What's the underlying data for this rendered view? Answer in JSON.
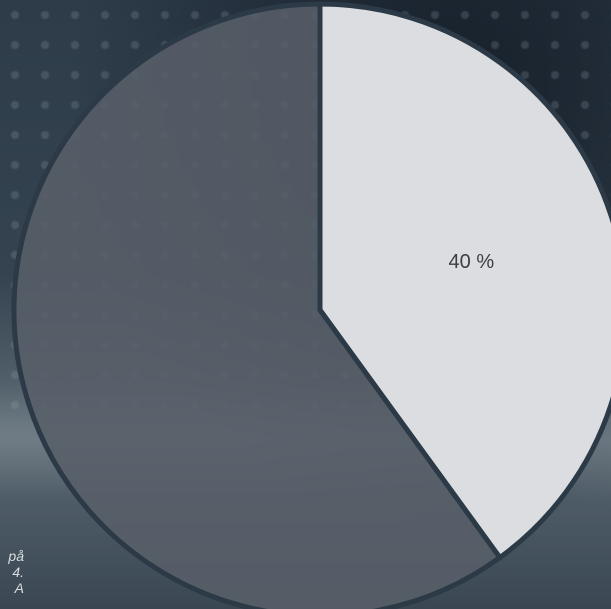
{
  "chart_data": {
    "type": "pie",
    "title": "",
    "slices": [
      {
        "label": "40 %",
        "value": 40,
        "color": "#dcdde0"
      },
      {
        "label": "",
        "value": 60,
        "color": "#585f69"
      }
    ],
    "start_angle_deg": 0,
    "separator_color": "#2b3a46"
  },
  "caption": {
    "lines": [
      "på",
      "4.",
      "A"
    ]
  }
}
